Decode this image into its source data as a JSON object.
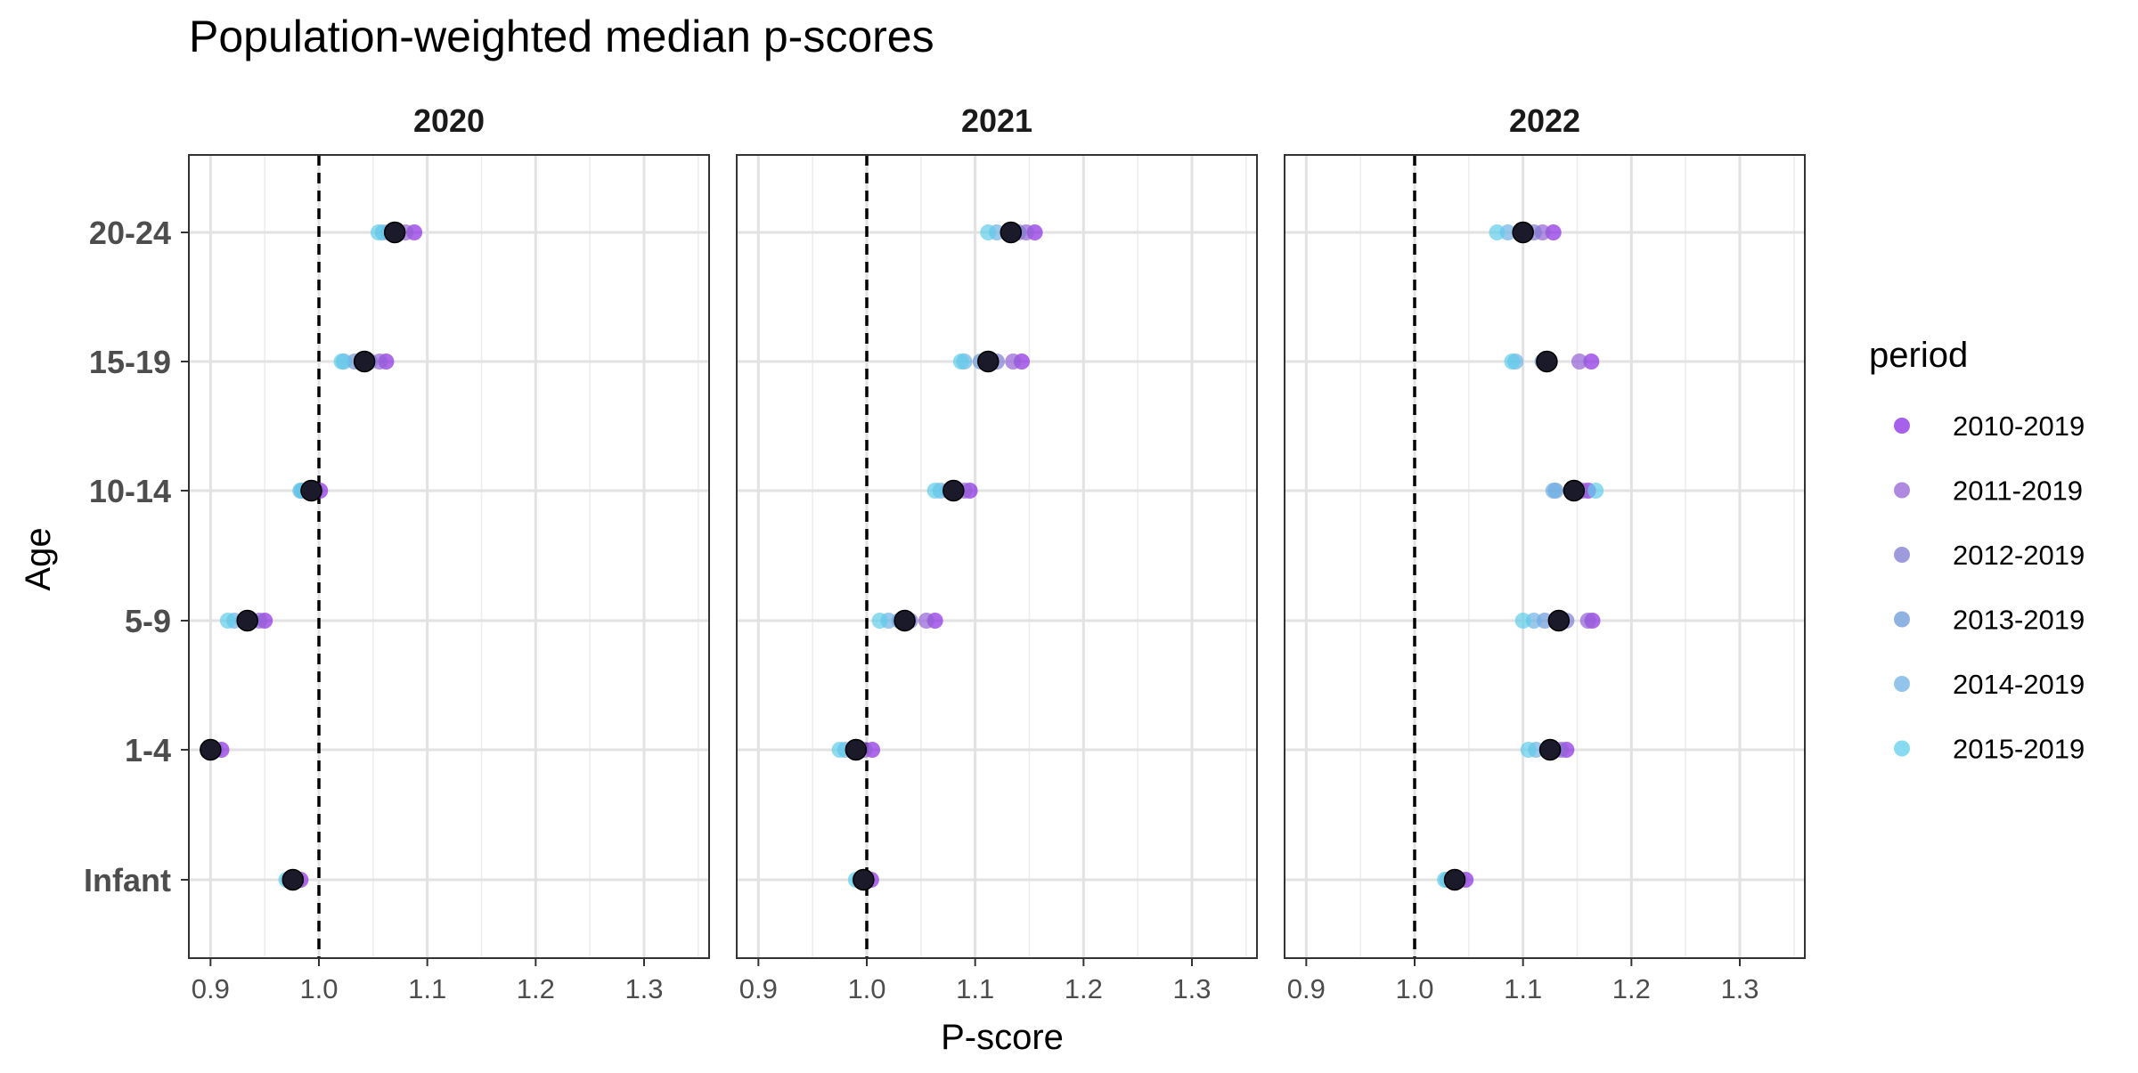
{
  "chart_data": {
    "type": "scatter",
    "title": "Population-weighted median p-scores",
    "xlabel": "P-score",
    "ylabel": "Age",
    "xlim": [
      0.88,
      1.36
    ],
    "x_ticks": [
      0.9,
      1.0,
      1.1,
      1.2,
      1.3
    ],
    "x_tick_labels": [
      "0.9",
      "1.0",
      "1.1",
      "1.2",
      "1.3"
    ],
    "age_groups": [
      "Infant",
      "1-4",
      "5-9",
      "10-14",
      "15-19",
      "20-24"
    ],
    "reference_line": {
      "x": 1.0,
      "style": "dashed"
    },
    "grid": true,
    "legend": {
      "title": "period",
      "position": "right",
      "entries": [
        {
          "name": "2010-2019",
          "color": "#8a2be2"
        },
        {
          "name": "2011-2019",
          "color": "#9461d6"
        },
        {
          "name": "2012-2019",
          "color": "#7d7ad1"
        },
        {
          "name": "2013-2019",
          "color": "#6b98d8"
        },
        {
          "name": "2014-2019",
          "color": "#6fb2e6"
        },
        {
          "name": "2015-2019",
          "color": "#5fcdea"
        }
      ]
    },
    "median_color": "#1a1a2a",
    "panels": [
      {
        "title": "2020",
        "rows": [
          {
            "age": "20-24",
            "values": [
              1.088,
              1.08,
              1.072,
              1.064,
              1.059,
              1.055
            ],
            "median": 1.07
          },
          {
            "age": "15-19",
            "values": [
              1.062,
              1.056,
              1.047,
              1.033,
              1.023,
              1.021
            ],
            "median": 1.042
          },
          {
            "age": "10-14",
            "values": [
              1.001,
              0.997,
              0.99,
              0.985,
              0.983,
              0.984
            ],
            "median": 0.993
          },
          {
            "age": "5-9",
            "values": [
              0.95,
              0.945,
              0.938,
              0.93,
              0.922,
              0.916
            ],
            "median": 0.934
          },
          {
            "age": "1-4",
            "values": [
              0.91,
              0.905,
              0.902,
              0.9,
              0.899,
              0.9
            ],
            "median": 0.9
          },
          {
            "age": "Infant",
            "values": [
              0.983,
              0.98,
              0.977,
              0.975,
              0.972,
              0.97
            ],
            "median": 0.976
          }
        ]
      },
      {
        "title": "2021",
        "rows": [
          {
            "age": "20-24",
            "values": [
              1.155,
              1.147,
              1.14,
              1.13,
              1.12,
              1.112
            ],
            "median": 1.133
          },
          {
            "age": "15-19",
            "values": [
              1.143,
              1.135,
              1.12,
              1.105,
              1.09,
              1.087
            ],
            "median": 1.112
          },
          {
            "age": "10-14",
            "values": [
              1.095,
              1.09,
              1.082,
              1.075,
              1.068,
              1.063
            ],
            "median": 1.08
          },
          {
            "age": "5-9",
            "values": [
              1.063,
              1.055,
              1.04,
              1.03,
              1.02,
              1.012
            ],
            "median": 1.035
          },
          {
            "age": "1-4",
            "values": [
              1.005,
              0.998,
              0.992,
              0.988,
              0.98,
              0.975
            ],
            "median": 0.99
          },
          {
            "age": "Infant",
            "values": [
              1.004,
              1.0,
              0.997,
              0.995,
              0.993,
              0.99
            ],
            "median": 0.997
          }
        ]
      },
      {
        "title": "2022",
        "rows": [
          {
            "age": "20-24",
            "values": [
              1.128,
              1.118,
              1.11,
              1.098,
              1.086,
              1.076
            ],
            "median": 1.1
          },
          {
            "age": "15-19",
            "values": [
              1.163,
              1.152,
              1.12,
              1.118,
              1.093,
              1.09
            ],
            "median": 1.122
          },
          {
            "age": "10-14",
            "values": [
              1.16,
              1.155,
              1.15,
              1.13,
              1.128,
              1.167
            ],
            "median": 1.147
          },
          {
            "age": "5-9",
            "values": [
              1.164,
              1.16,
              1.14,
              1.12,
              1.11,
              1.1
            ],
            "median": 1.133
          },
          {
            "age": "1-4",
            "values": [
              1.14,
              1.135,
              1.13,
              1.122,
              1.112,
              1.105
            ],
            "median": 1.125
          },
          {
            "age": "Infant",
            "values": [
              1.047,
              1.042,
              1.038,
              1.035,
              1.03,
              1.028
            ],
            "median": 1.037
          }
        ]
      }
    ]
  }
}
